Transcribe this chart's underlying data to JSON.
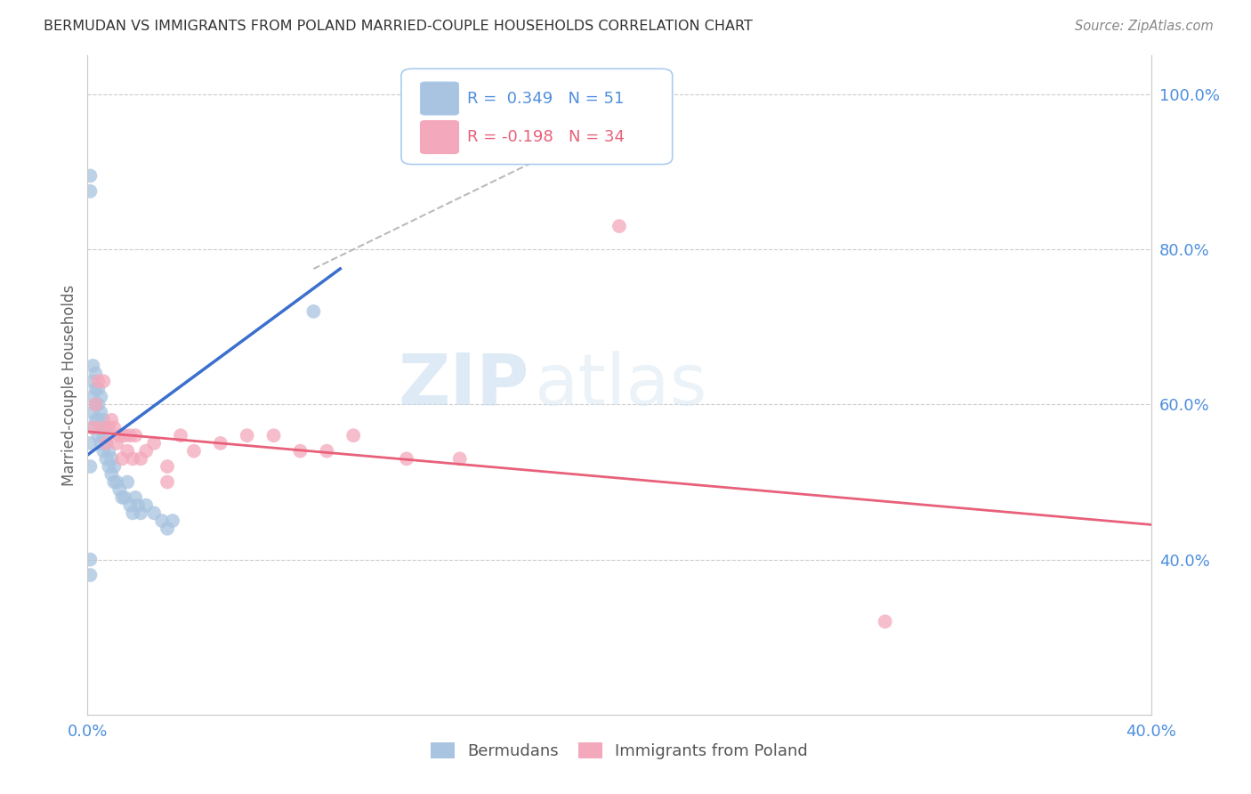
{
  "title": "BERMUDAN VS IMMIGRANTS FROM POLAND MARRIED-COUPLE HOUSEHOLDS CORRELATION CHART",
  "source": "Source: ZipAtlas.com",
  "ylabel": "Married-couple Households",
  "xlim": [
    0.0,
    0.4
  ],
  "ylim": [
    0.2,
    1.05
  ],
  "yticks_right": [
    0.4,
    0.6,
    0.8,
    1.0
  ],
  "ytick_labels_right": [
    "40.0%",
    "60.0%",
    "80.0%",
    "100.0%"
  ],
  "R_blue": 0.349,
  "N_blue": 51,
  "R_pink": -0.198,
  "N_pink": 34,
  "blue_color": "#a8c4e0",
  "pink_color": "#f4a8bb",
  "blue_line_color": "#3b6fce",
  "pink_line_color": "#e8607a",
  "axis_label_color": "#4f8fde",
  "background_color": "#ffffff",
  "grid_color": "#cccccc",
  "watermark_zip": "ZIP",
  "watermark_atlas": "atlas",
  "blue_line_x": [
    0.0,
    0.095
  ],
  "blue_line_y": [
    0.535,
    0.775
  ],
  "pink_line_x": [
    0.0,
    0.4
  ],
  "pink_line_y": [
    0.565,
    0.445
  ],
  "dash_line_x": [
    0.085,
    0.22
  ],
  "dash_line_y": [
    0.775,
    1.0
  ],
  "blue_x": [
    0.001,
    0.001,
    0.001,
    0.001,
    0.002,
    0.002,
    0.002,
    0.002,
    0.002,
    0.003,
    0.003,
    0.003,
    0.003,
    0.004,
    0.004,
    0.004,
    0.004,
    0.005,
    0.005,
    0.005,
    0.005,
    0.006,
    0.006,
    0.006,
    0.007,
    0.007,
    0.007,
    0.008,
    0.008,
    0.009,
    0.009,
    0.01,
    0.01,
    0.011,
    0.012,
    0.013,
    0.014,
    0.015,
    0.016,
    0.017,
    0.018,
    0.019,
    0.02,
    0.022,
    0.025,
    0.028,
    0.03,
    0.032,
    0.085,
    0.001,
    0.001
  ],
  "blue_y": [
    0.875,
    0.895,
    0.52,
    0.55,
    0.57,
    0.59,
    0.61,
    0.63,
    0.65,
    0.58,
    0.6,
    0.62,
    0.64,
    0.56,
    0.58,
    0.6,
    0.62,
    0.55,
    0.57,
    0.59,
    0.61,
    0.54,
    0.56,
    0.58,
    0.53,
    0.55,
    0.57,
    0.52,
    0.54,
    0.51,
    0.53,
    0.5,
    0.52,
    0.5,
    0.49,
    0.48,
    0.48,
    0.5,
    0.47,
    0.46,
    0.48,
    0.47,
    0.46,
    0.47,
    0.46,
    0.45,
    0.44,
    0.45,
    0.72,
    0.38,
    0.4
  ],
  "pink_x": [
    0.002,
    0.003,
    0.004,
    0.005,
    0.006,
    0.007,
    0.008,
    0.009,
    0.01,
    0.011,
    0.012,
    0.013,
    0.014,
    0.015,
    0.016,
    0.017,
    0.018,
    0.02,
    0.022,
    0.025,
    0.03,
    0.03,
    0.035,
    0.04,
    0.05,
    0.06,
    0.07,
    0.08,
    0.09,
    0.1,
    0.12,
    0.14,
    0.2,
    0.3
  ],
  "pink_y": [
    0.57,
    0.6,
    0.63,
    0.57,
    0.63,
    0.55,
    0.57,
    0.58,
    0.57,
    0.55,
    0.56,
    0.53,
    0.56,
    0.54,
    0.56,
    0.53,
    0.56,
    0.53,
    0.54,
    0.55,
    0.52,
    0.5,
    0.56,
    0.54,
    0.55,
    0.56,
    0.56,
    0.54,
    0.54,
    0.56,
    0.53,
    0.53,
    0.83,
    0.32
  ]
}
